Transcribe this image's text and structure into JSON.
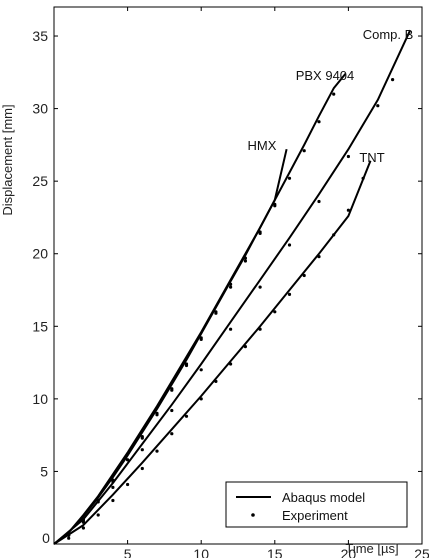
{
  "chart_data": {
    "type": "line",
    "title": "",
    "xlabel": "Time [µs]",
    "ylabel": "Displacement [mm]",
    "xlim": [
      0,
      25
    ],
    "ylim": [
      0,
      37
    ],
    "xticks": [
      0,
      5,
      10,
      15,
      20,
      25
    ],
    "yticks": [
      0,
      5,
      10,
      15,
      20,
      25,
      30,
      35
    ],
    "xtick_labels": [
      "0",
      "5",
      "10",
      "15",
      "20",
      "25"
    ],
    "ytick_labels": [
      "0",
      "5",
      "10",
      "15",
      "20",
      "25",
      "30",
      "35"
    ],
    "grid": false,
    "legend_position": "bottom-right",
    "legend": [
      {
        "label": "Abaqus model",
        "marker": "line"
      },
      {
        "label": "Experiment",
        "marker": "dot"
      }
    ],
    "line_color": "#000000",
    "series": [
      {
        "name": "HMX",
        "model": {
          "x": [
            0,
            1,
            2,
            3,
            4,
            5,
            6,
            7,
            8,
            9,
            10,
            11,
            12,
            13,
            14,
            15,
            15.8
          ],
          "y": [
            0,
            0.8,
            2.0,
            3.3,
            4.8,
            6.3,
            7.9,
            9.5,
            11.2,
            12.9,
            14.6,
            16.4,
            18.2,
            20.0,
            21.8,
            23.7,
            27.2
          ]
        },
        "experiment": {
          "x": [
            1,
            2,
            3,
            4,
            5,
            6,
            7,
            8,
            9,
            10,
            11,
            12,
            13,
            14,
            15
          ],
          "y": [
            0.6,
            1.7,
            3.0,
            4.4,
            5.8,
            7.4,
            9.0,
            10.7,
            12.4,
            14.2,
            16.0,
            17.9,
            19.7,
            21.5,
            23.4
          ]
        }
      },
      {
        "name": "PBX 9404",
        "model": {
          "x": [
            0,
            1,
            2,
            3,
            4,
            5,
            6,
            7,
            8,
            9,
            10,
            11,
            12,
            13,
            14,
            15,
            16,
            17,
            18,
            19,
            19.8
          ],
          "y": [
            0,
            0.8,
            1.9,
            3.2,
            4.6,
            6.1,
            7.7,
            9.3,
            11.0,
            12.7,
            14.5,
            16.3,
            18.1,
            19.9,
            21.8,
            23.7,
            25.6,
            27.5,
            29.5,
            31.4,
            32.4
          ]
        },
        "experiment": {
          "x": [
            1,
            2,
            3,
            4,
            5,
            6,
            7,
            8,
            9,
            10,
            11,
            12,
            13,
            14,
            15,
            16,
            17,
            18,
            19
          ],
          "y": [
            0.6,
            1.6,
            2.9,
            4.3,
            5.8,
            7.3,
            8.9,
            10.6,
            12.3,
            14.1,
            15.9,
            17.7,
            19.5,
            21.4,
            23.3,
            25.2,
            27.1,
            29.1,
            31.0
          ]
        }
      },
      {
        "name": "Comp. B",
        "model": {
          "x": [
            0,
            2,
            4,
            6,
            8,
            10,
            12,
            14,
            16,
            18,
            20,
            22,
            24.2
          ],
          "y": [
            0,
            1.7,
            4.2,
            6.9,
            9.6,
            12.4,
            15.3,
            18.2,
            21.1,
            24.1,
            27.2,
            30.6,
            35.4
          ]
        },
        "experiment": {
          "x": [
            2,
            4,
            6,
            8,
            10,
            12,
            14,
            16,
            18,
            20,
            22,
            23
          ],
          "y": [
            1.5,
            3.9,
            6.5,
            9.2,
            12.0,
            14.8,
            17.7,
            20.6,
            23.6,
            26.7,
            30.2,
            32.0
          ]
        }
      },
      {
        "name": "TNT",
        "model": {
          "x": [
            0,
            2,
            4,
            6,
            8,
            10,
            12,
            14,
            16,
            18,
            20,
            21.5
          ],
          "y": [
            0,
            1.3,
            3.4,
            5.6,
            7.9,
            10.2,
            12.6,
            15.0,
            17.5,
            20.0,
            22.6,
            26.4
          ]
        },
        "experiment": {
          "x": [
            1,
            2,
            3,
            4,
            5,
            6,
            7,
            8,
            9,
            10,
            11,
            12,
            13,
            14,
            15,
            16,
            17,
            18,
            19,
            20,
            21
          ],
          "y": [
            0.4,
            1.1,
            2.0,
            3.0,
            4.1,
            5.2,
            6.4,
            7.6,
            8.8,
            10.0,
            11.2,
            12.4,
            13.6,
            14.8,
            16.0,
            17.2,
            18.5,
            19.8,
            21.3,
            23.0,
            25.2
          ]
        }
      }
    ]
  }
}
